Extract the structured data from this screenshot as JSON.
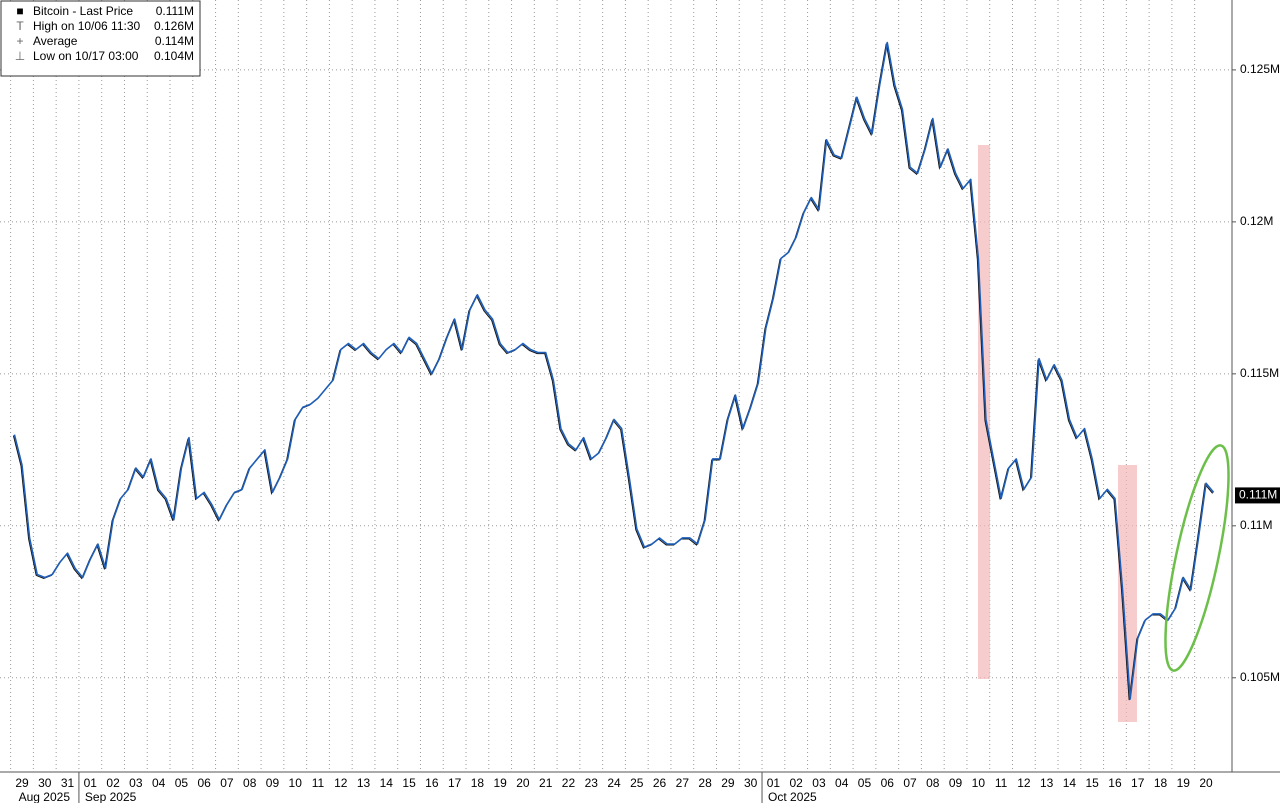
{
  "chart_data": {
    "type": "line",
    "series": [
      {
        "name": "Bitcoin - Last Price",
        "color": "#1e5eb8",
        "values": [
          0.113,
          0.112,
          0.1096,
          0.1084,
          0.1083,
          0.1084,
          0.1088,
          0.1091,
          0.1086,
          0.1083,
          0.1089,
          0.1094,
          0.1086,
          0.1102,
          0.1109,
          0.1112,
          0.1119,
          0.1116,
          0.1122,
          0.1112,
          0.1109,
          0.1102,
          0.1119,
          0.1129,
          0.1109,
          0.1111,
          0.1107,
          0.1102,
          0.1107,
          0.1111,
          0.1112,
          0.1119,
          0.1122,
          0.1125,
          0.1111,
          0.1116,
          0.1122,
          0.1135,
          0.1139,
          0.114,
          0.1142,
          0.1145,
          0.1148,
          0.1158,
          0.116,
          0.1158,
          0.116,
          0.1157,
          0.1155,
          0.1158,
          0.116,
          0.1157,
          0.1162,
          0.116,
          0.1155,
          0.115,
          0.1155,
          0.1162,
          0.1168,
          0.1158,
          0.1171,
          0.1176,
          0.1171,
          0.1168,
          0.116,
          0.1157,
          0.1158,
          0.116,
          0.1158,
          0.1157,
          0.1157,
          0.1148,
          0.1132,
          0.1127,
          0.1125,
          0.1129,
          0.1122,
          0.1124,
          0.1129,
          0.1135,
          0.1132,
          0.1116,
          0.1099,
          0.1093,
          0.1094,
          0.1096,
          0.1094,
          0.1094,
          0.1096,
          0.1096,
          0.1094,
          0.1102,
          0.1122,
          0.1122,
          0.1135,
          0.1143,
          0.1132,
          0.1139,
          0.1147,
          0.1165,
          0.1175,
          0.1188,
          0.119,
          0.1195,
          0.1203,
          0.1208,
          0.1204,
          0.1227,
          0.1222,
          0.1221,
          0.1231,
          0.1241,
          0.1234,
          0.1229,
          0.1245,
          0.1259,
          0.1245,
          0.1237,
          0.1218,
          0.1216,
          0.1224,
          0.1234,
          0.1218,
          0.1224,
          0.1216,
          0.1211,
          0.1214,
          0.1188,
          0.1135,
          0.1122,
          0.1109,
          0.1119,
          0.1122,
          0.1112,
          0.1116,
          0.1155,
          0.1148,
          0.1153,
          0.1148,
          0.1135,
          0.1129,
          0.1132,
          0.1122,
          0.1109,
          0.1112,
          0.1109,
          0.1079,
          0.1043,
          0.1063,
          0.1069,
          0.1071,
          0.1071,
          0.1069,
          0.1073,
          0.1083,
          0.1079,
          0.1096,
          0.1114,
          0.1111
        ]
      }
    ],
    "categories": [
      null,
      "29",
      null,
      null,
      "30",
      null,
      null,
      "31",
      null,
      null,
      "01",
      null,
      null,
      "02",
      null,
      null,
      "03",
      null,
      null,
      "04",
      null,
      null,
      "05",
      null,
      null,
      "06",
      null,
      null,
      "07",
      null,
      null,
      "08",
      null,
      null,
      "09",
      null,
      null,
      "10",
      null,
      null,
      "11",
      null,
      null,
      "12",
      null,
      null,
      "13",
      null,
      null,
      "14",
      null,
      null,
      "15",
      null,
      null,
      "16",
      null,
      null,
      "17",
      null,
      null,
      "18",
      null,
      null,
      "19",
      null,
      null,
      "20",
      null,
      null,
      "21",
      null,
      null,
      "22",
      null,
      null,
      "23",
      null,
      null,
      "24",
      null,
      null,
      "25",
      null,
      null,
      "26",
      null,
      null,
      "27",
      null,
      null,
      "28",
      null,
      null,
      "29",
      null,
      null,
      "30",
      null,
      null,
      "01",
      null,
      null,
      "02",
      null,
      null,
      "03",
      null,
      null,
      "04",
      null,
      null,
      "05",
      null,
      null,
      "06",
      null,
      null,
      "07",
      null,
      null,
      "08",
      null,
      null,
      "09",
      null,
      null,
      "10",
      null,
      null,
      "11",
      null,
      null,
      "12",
      null,
      null,
      "13",
      null,
      null,
      "14",
      null,
      null,
      "15",
      null,
      null,
      "16",
      null,
      null,
      "17",
      null,
      null,
      "18",
      null,
      null,
      "19",
      null,
      null,
      "20",
      null
    ],
    "months": [
      "Aug 2025",
      "Sep 2025",
      "Oct 2025"
    ],
    "ylim": [
      0.1019,
      0.1273
    ],
    "yticks": [
      {
        "value": 0.105,
        "label": "0.105M"
      },
      {
        "value": 0.11,
        "label": "0.11M"
      },
      {
        "value": 0.115,
        "label": "0.115M"
      },
      {
        "value": 0.12,
        "label": "0.12M"
      },
      {
        "value": 0.125,
        "label": "0.125M"
      }
    ],
    "last_price": {
      "value": 0.111,
      "label": "0.111M"
    },
    "legend": [
      {
        "label": "Bitcoin - Last Price",
        "value": "0.111M"
      },
      {
        "label": "High on 10/06 11:30",
        "value": "0.126M"
      },
      {
        "label": "Average",
        "value": "0.114M"
      },
      {
        "label": "Low on 10/17 03:00",
        "value": "0.104M"
      }
    ],
    "grid": true
  }
}
